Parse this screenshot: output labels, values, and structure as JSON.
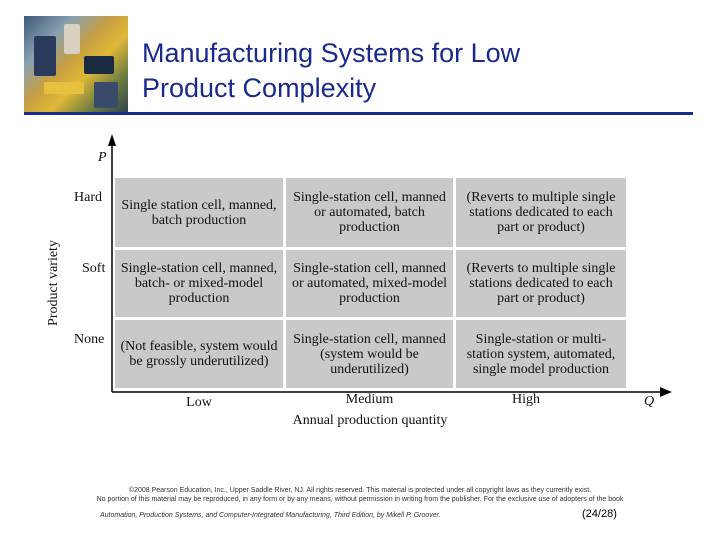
{
  "slide": {
    "title_line1": "Manufacturing Systems for Low",
    "title_line2": "Product Complexity"
  },
  "matrix": {
    "y_axis_symbol": "P",
    "y_axis_label": "Product variety",
    "x_axis_symbol": "Q",
    "x_axis_label": "Annual production quantity",
    "rows": [
      "Hard",
      "Soft",
      "None"
    ],
    "columns": [
      "Low",
      "Medium",
      "High"
    ],
    "cells": [
      [
        "Single station cell, manned, batch production",
        "Single-station cell, manned or automated, batch production",
        "(Reverts to multiple single stations dedicated to each part or product)"
      ],
      [
        "Single-station cell, manned, batch- or mixed-model production",
        "Single-station cell, manned or automated, mixed-model production",
        "(Reverts to multiple single stations dedicated to each part or product)"
      ],
      [
        "(Not feasible, system would be grossly underutilized)",
        "Single-station cell, manned (system would be underutilized)",
        "Single-station or multi-station system, automated, single model production"
      ]
    ],
    "cell_fill": "#c9c9c9"
  },
  "footer": {
    "copyright_line1": "©2008 Pearson Education, Inc., Upper Saddle River, NJ. All rights reserved. This material is protected under all copyright laws as they currently exist.",
    "copyright_line2": "No portion of this material may be reproduced, in any form or by any means, without permission in writing from the publisher. For the exclusive use of adopters of the book",
    "book_citation": "Automation, Production Systems, and Computer-Integrated Manufacturing, Third Edition, by Mikell P. Groover.",
    "page_number": "(24/28)"
  },
  "colors": {
    "title": "#1a2a8c",
    "rule": "#1a2a8c"
  }
}
